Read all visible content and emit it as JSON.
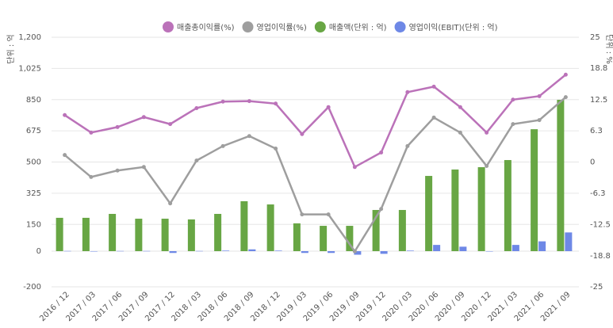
{
  "chart_data": {
    "type": "bar-line",
    "y_label": "단위 : 억",
    "y2_label": "단위 : %",
    "categories": [
      "2016 / 12",
      "2017 / 03",
      "2017 / 06",
      "2017 / 09",
      "2017 / 12",
      "2018 / 03",
      "2018 / 06",
      "2018 / 09",
      "2018 / 12",
      "2019 / 03",
      "2019 / 06",
      "2019 / 09",
      "2019 / 12",
      "2020 / 03",
      "2020 / 06",
      "2020 / 09",
      "2020 / 12",
      "2021 / 03",
      "2021 / 06",
      "2021 / 09"
    ],
    "series": [
      {
        "name": "매출총이익률(%)",
        "type": "line",
        "axis": "y2",
        "color": "#bb72b9",
        "values": [
          9.4,
          5.9,
          7.0,
          9.0,
          7.6,
          10.8,
          12.1,
          12.2,
          11.7,
          5.6,
          11.0,
          -1.0,
          1.9,
          14.0,
          15.1,
          11.0,
          5.9,
          12.5,
          13.2,
          17.5
        ]
      },
      {
        "name": "영업이익률(%)",
        "type": "line",
        "axis": "y2",
        "color": "#9e9e9e",
        "values": [
          1.4,
          -3.0,
          -1.7,
          -1.0,
          -8.3,
          0.3,
          3.2,
          5.2,
          2.7,
          -10.5,
          -10.5,
          -17.9,
          -9.4,
          3.2,
          8.9,
          5.9,
          -0.8,
          7.6,
          8.4,
          13.0
        ]
      },
      {
        "name": "매출액(단위 : 억)",
        "type": "bar",
        "color": "#68a644",
        "values": [
          187,
          187,
          209,
          182,
          182,
          178,
          209,
          280,
          262,
          156,
          142,
          142,
          231,
          231,
          422,
          458,
          471,
          511,
          684,
          849
        ]
      },
      {
        "name": "영업이익(EBIT)(단위 : 억)",
        "type": "bar",
        "color": "#6e88e6",
        "values": [
          1,
          -2,
          1,
          1,
          -10,
          1,
          3,
          10,
          3,
          -10,
          -10,
          -20,
          -15,
          3,
          35,
          25,
          0,
          35,
          55,
          105
        ]
      }
    ],
    "ylim": [
      -200,
      1200
    ],
    "yticks": [
      {
        "value": 1200,
        "label": "1,200"
      },
      {
        "value": 1025,
        "label": "1,025"
      },
      850,
      675,
      500,
      325,
      150,
      0,
      -200
    ],
    "y2lim": [
      -25,
      25
    ],
    "y2ticks": [
      25,
      18.8,
      12.5,
      6.3,
      0,
      -6.3,
      -12.5,
      -18.8,
      -25
    ],
    "grid": true
  }
}
